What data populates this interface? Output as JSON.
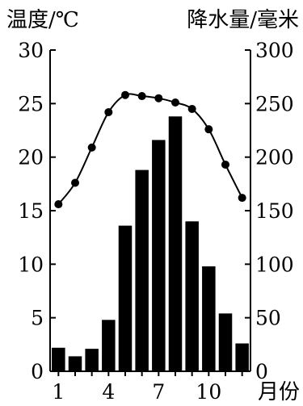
{
  "chart_data": {
    "type": "bar+line",
    "left_axis": {
      "title": "温度/℃",
      "ylim": [
        0,
        30
      ],
      "ticks": [
        "0",
        "5",
        "10",
        "15",
        "20",
        "25",
        "30"
      ]
    },
    "right_axis": {
      "title": "降水量/毫米",
      "ylim": [
        0,
        300
      ],
      "ticks": [
        "0",
        "50",
        "100",
        "150",
        "200",
        "250",
        "300"
      ]
    },
    "x_axis": {
      "categories": [
        1,
        2,
        3,
        4,
        5,
        6,
        7,
        8,
        9,
        10,
        11,
        12
      ],
      "tick_labels": [
        {
          "month": 1,
          "label": "1"
        },
        {
          "month": 4,
          "label": "4"
        },
        {
          "month": 7,
          "label": "7"
        },
        {
          "month": 10,
          "label": "10"
        }
      ],
      "unit_label": "月份"
    },
    "series": [
      {
        "type": "bar",
        "axis": "right",
        "values": [
          22,
          14,
          21,
          48,
          136,
          188,
          216,
          238,
          140,
          98,
          54,
          26
        ]
      },
      {
        "type": "line",
        "axis": "left",
        "values": [
          15.6,
          17.6,
          20.9,
          24.2,
          25.8,
          25.7,
          25.5,
          25.1,
          24.5,
          22.6,
          19.3,
          16.2
        ]
      }
    ],
    "grid": false,
    "legend": "none"
  }
}
